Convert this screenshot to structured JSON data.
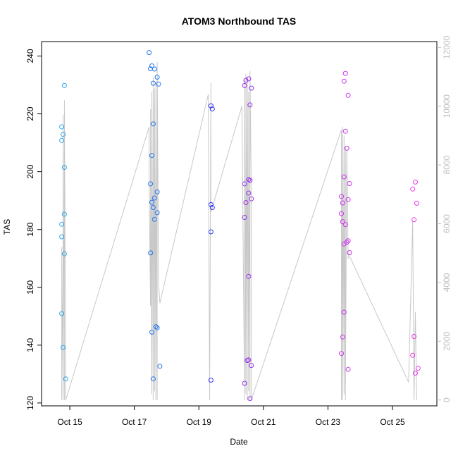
{
  "chart_data": {
    "type": "scatter",
    "title": "ATOM3 Northbound TAS",
    "xlabel": "Date",
    "ylabel": "TAS",
    "xlim": [
      "2022-10-14 03:00",
      "2022-10-26 09:00"
    ],
    "ylim": [
      119,
      245
    ],
    "y2lim": [
      -200,
      12200
    ],
    "x_ticks": [
      {
        "label": "Oct 15",
        "date": "2022-10-15"
      },
      {
        "label": "Oct 17",
        "date": "2022-10-17"
      },
      {
        "label": "Oct 19",
        "date": "2022-10-19"
      },
      {
        "label": "Oct 21",
        "date": "2022-10-21"
      },
      {
        "label": "Oct 23",
        "date": "2022-10-23"
      },
      {
        "label": "Oct 25",
        "date": "2022-10-25"
      }
    ],
    "y_ticks": [
      120,
      140,
      160,
      180,
      200,
      220,
      240
    ],
    "y2_ticks": [
      0,
      2000,
      4000,
      6000,
      8000,
      10000,
      12000
    ],
    "grid": false,
    "colors": {
      "line": "#c8c8c8",
      "right_axis": "#bdbdbd",
      "axis": "#000000"
    },
    "series": [
      {
        "color": "#2ea6ee",
        "points": [
          [
            "2022-10-14 18:00",
            215.5
          ],
          [
            "2022-10-14 18:00",
            210.8
          ],
          [
            "2022-10-14 18:00",
            181.8
          ],
          [
            "2022-10-14 18:00",
            177.5
          ],
          [
            "2022-10-14 18:00",
            150.9
          ],
          [
            "2022-10-14 19:00",
            212.9
          ],
          [
            "2022-10-14 19:00",
            139.2
          ],
          [
            "2022-10-14 20:00",
            229.8
          ],
          [
            "2022-10-14 20:00",
            201.5
          ],
          [
            "2022-10-14 20:00",
            185.3
          ],
          [
            "2022-10-14 20:00",
            171.6
          ],
          [
            "2022-10-14 21:00",
            128.3
          ]
        ]
      },
      {
        "color": "#2277ee",
        "points": [
          [
            "2022-10-17 11:00",
            241.2
          ],
          [
            "2022-10-17 12:00",
            235.6
          ],
          [
            "2022-10-17 12:00",
            195.8
          ],
          [
            "2022-10-17 12:00",
            171.9
          ],
          [
            "2022-10-17 13:00",
            236.6
          ],
          [
            "2022-10-17 13:00",
            205.6
          ],
          [
            "2022-10-17 13:00",
            189.4
          ],
          [
            "2022-10-17 13:00",
            144.5
          ],
          [
            "2022-10-17 14:00",
            230.6
          ],
          [
            "2022-10-17 14:00",
            216.5
          ],
          [
            "2022-10-17 14:00",
            187.6
          ],
          [
            "2022-10-17 14:00",
            128.3
          ],
          [
            "2022-10-17 15:00",
            235.5
          ],
          [
            "2022-10-17 15:00",
            190.9
          ],
          [
            "2022-10-17 15:00",
            183.5
          ],
          [
            "2022-10-17 16:00",
            146.4
          ],
          [
            "2022-10-17 17:00",
            232.7
          ],
          [
            "2022-10-17 17:00",
            193.0
          ],
          [
            "2022-10-17 17:00",
            185.8
          ],
          [
            "2022-10-17 17:00",
            146.0
          ],
          [
            "2022-10-17 18:00",
            230.3
          ],
          [
            "2022-10-17 19:00",
            132.7
          ]
        ]
      },
      {
        "color": "#3333ee",
        "points": [
          [
            "2022-10-19 09:00",
            222.8
          ],
          [
            "2022-10-19 09:00",
            188.6
          ],
          [
            "2022-10-19 09:00",
            179.2
          ],
          [
            "2022-10-19 09:00",
            127.9
          ],
          [
            "2022-10-19 10:00",
            221.7
          ],
          [
            "2022-10-19 10:00",
            187.6
          ]
        ]
      },
      {
        "color": "#9933ee",
        "points": [
          [
            "2022-10-20 10:00",
            229.8
          ],
          [
            "2022-10-20 10:00",
            195.8
          ],
          [
            "2022-10-20 10:00",
            184.2
          ],
          [
            "2022-10-20 10:00",
            126.8
          ],
          [
            "2022-10-20 11:00",
            231.6
          ],
          [
            "2022-10-20 11:00",
            189.3
          ],
          [
            "2022-10-20 12:00",
            134.7
          ],
          [
            "2022-10-20 13:00",
            232.1
          ],
          [
            "2022-10-20 13:00",
            197.3
          ],
          [
            "2022-10-20 13:00",
            192.6
          ],
          [
            "2022-10-20 13:00",
            163.8
          ],
          [
            "2022-10-20 13:00",
            134.9
          ],
          [
            "2022-10-20 14:00",
            223.1
          ],
          [
            "2022-10-20 14:00",
            197.0
          ],
          [
            "2022-10-20 14:00",
            121.5
          ],
          [
            "2022-10-20 15:00",
            228.9
          ],
          [
            "2022-10-20 15:00",
            190.6
          ],
          [
            "2022-10-20 15:00",
            133.0
          ]
        ]
      },
      {
        "color": "#cc33ee",
        "points": [
          [
            "2022-10-23 10:00",
            191.4
          ],
          [
            "2022-10-23 10:00",
            185.5
          ],
          [
            "2022-10-23 10:00",
            137.1
          ],
          [
            "2022-10-23 11:00",
            189.2
          ],
          [
            "2022-10-23 11:00",
            182.7
          ],
          [
            "2022-10-23 11:00",
            142.8
          ],
          [
            "2022-10-23 12:00",
            231.3
          ],
          [
            "2022-10-23 12:00",
            198.2
          ],
          [
            "2022-10-23 12:00",
            175.0
          ],
          [
            "2022-10-23 12:00",
            151.4
          ],
          [
            "2022-10-23 13:00",
            234.0
          ],
          [
            "2022-10-23 13:00",
            214.0
          ],
          [
            "2022-10-23 13:00",
            181.7
          ],
          [
            "2022-10-23 14:00",
            208.1
          ],
          [
            "2022-10-23 14:00",
            175.6
          ],
          [
            "2022-10-23 15:00",
            226.4
          ],
          [
            "2022-10-23 15:00",
            190.3
          ],
          [
            "2022-10-23 15:00",
            176.1
          ],
          [
            "2022-10-23 15:00",
            131.6
          ],
          [
            "2022-10-23 16:00",
            195.9
          ],
          [
            "2022-10-23 16:00",
            172.0
          ]
        ]
      },
      {
        "color": "#ee33ee",
        "points": [
          [
            "2022-10-25 15:00",
            194.0
          ],
          [
            "2022-10-25 15:00",
            136.5
          ],
          [
            "2022-10-25 16:00",
            183.4
          ],
          [
            "2022-10-25 16:00",
            143.0
          ],
          [
            "2022-10-25 17:00",
            196.4
          ],
          [
            "2022-10-25 17:00",
            130.3
          ],
          [
            "2022-10-25 18:00",
            189.1
          ],
          [
            "2022-10-25 19:00",
            132.0
          ]
        ]
      }
    ],
    "line_series": {
      "axis": "right",
      "color": "#c8c8c8",
      "points": [
        [
          "2022-10-14 18:00",
          0
        ],
        [
          "2022-10-14 18:00",
          5200
        ],
        [
          "2022-10-14 19:00",
          0
        ],
        [
          "2022-10-14 19:00",
          9700
        ],
        [
          "2022-10-14 20:00",
          0
        ],
        [
          "2022-10-14 20:00",
          10200
        ],
        [
          "2022-10-14 21:00",
          0
        ],
        [
          "2022-10-17 11:00",
          9300
        ],
        [
          "2022-10-17 11:00",
          7500
        ],
        [
          "2022-10-17 12:00",
          3200
        ],
        [
          "2022-10-17 12:00",
          9900
        ],
        [
          "2022-10-17 13:00",
          200
        ],
        [
          "2022-10-17 13:00",
          10500
        ],
        [
          "2022-10-17 14:00",
          0
        ],
        [
          "2022-10-17 14:00",
          11000
        ],
        [
          "2022-10-17 15:00",
          300
        ],
        [
          "2022-10-17 15:00",
          10600
        ],
        [
          "2022-10-17 16:00",
          0
        ],
        [
          "2022-10-17 16:00",
          10800
        ],
        [
          "2022-10-17 17:00",
          0
        ],
        [
          "2022-10-17 17:00",
          11500
        ],
        [
          "2022-10-17 18:00",
          4000
        ],
        [
          "2022-10-17 19:00",
          3300
        ],
        [
          "2022-10-19 07:00",
          10400
        ],
        [
          "2022-10-19 08:00",
          0
        ],
        [
          "2022-10-19 09:00",
          10800
        ],
        [
          "2022-10-19 09:00",
          6800
        ],
        [
          "2022-10-19 09:00",
          6400
        ],
        [
          "2022-10-20 08:00",
          10000
        ],
        [
          "2022-10-20 10:00",
          0
        ],
        [
          "2022-10-20 10:00",
          10900
        ],
        [
          "2022-10-20 11:00",
          200
        ],
        [
          "2022-10-20 11:00",
          11100
        ],
        [
          "2022-10-20 12:00",
          0
        ],
        [
          "2022-10-20 12:00",
          11000
        ],
        [
          "2022-10-20 13:00",
          300
        ],
        [
          "2022-10-20 13:00",
          10500
        ],
        [
          "2022-10-20 14:00",
          0
        ],
        [
          "2022-10-20 14:00",
          11200
        ],
        [
          "2022-10-20 15:00",
          7000
        ],
        [
          "2022-10-20 15:00",
          0
        ],
        [
          "2022-10-23 10:00",
          9200
        ],
        [
          "2022-10-23 10:00",
          0
        ],
        [
          "2022-10-23 11:00",
          9300
        ],
        [
          "2022-10-23 11:00",
          0
        ],
        [
          "2022-10-23 12:00",
          9000
        ],
        [
          "2022-10-23 12:00",
          200
        ],
        [
          "2022-10-23 13:00",
          8600
        ],
        [
          "2022-10-23 13:00",
          0
        ],
        [
          "2022-10-23 14:00",
          8500
        ],
        [
          "2022-10-23 15:00",
          4800
        ],
        [
          "2022-10-23 15:00",
          5000
        ],
        [
          "2022-10-25 12:00",
          600
        ],
        [
          "2022-10-25 15:00",
          6100
        ],
        [
          "2022-10-25 16:00",
          0
        ],
        [
          "2022-10-25 17:00",
          3000
        ],
        [
          "2022-10-25 18:00",
          0
        ]
      ]
    }
  }
}
